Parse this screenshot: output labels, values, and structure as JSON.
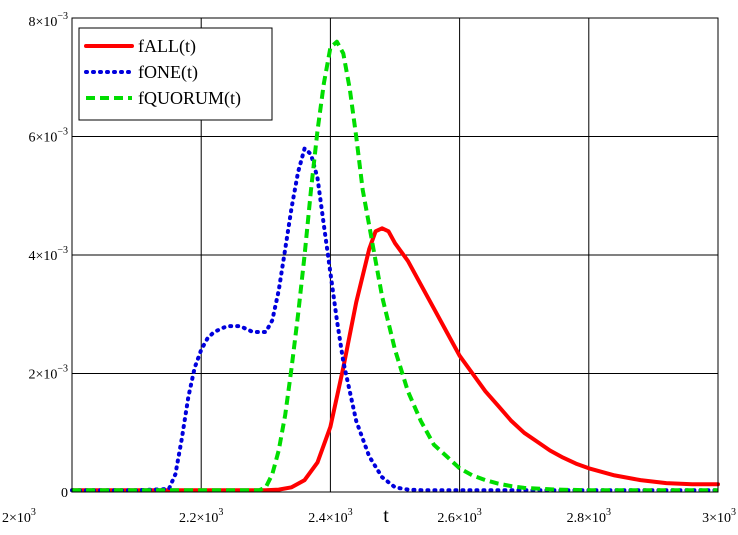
{
  "chart_data": {
    "type": "line",
    "title": "",
    "xlabel": "t",
    "ylabel": "",
    "xlim": [
      2000,
      3000
    ],
    "ylim": [
      0,
      0.008
    ],
    "grid": true,
    "legend_position": "top-left",
    "x_ticks": [
      {
        "value": 2000,
        "mantissa": "2",
        "exponent": "3"
      },
      {
        "value": 2200,
        "mantissa": "2.2",
        "exponent": "3"
      },
      {
        "value": 2400,
        "mantissa": "2.4",
        "exponent": "3"
      },
      {
        "value": 2600,
        "mantissa": "2.6",
        "exponent": "3"
      },
      {
        "value": 2800,
        "mantissa": "2.8",
        "exponent": "3"
      },
      {
        "value": 3000,
        "mantissa": "3",
        "exponent": "3"
      }
    ],
    "y_ticks": [
      {
        "value": 0,
        "mantissa": "0",
        "exponent": ""
      },
      {
        "value": 0.002,
        "mantissa": "2",
        "exponent": "−3"
      },
      {
        "value": 0.004,
        "mantissa": "4",
        "exponent": "−3"
      },
      {
        "value": 0.006,
        "mantissa": "6",
        "exponent": "−3"
      },
      {
        "value": 0.008,
        "mantissa": "8",
        "exponent": "−3"
      }
    ],
    "series": [
      {
        "name": "fALL(t)",
        "color": "#ff0000",
        "style": "solid",
        "x": [
          2000,
          2100,
          2200,
          2280,
          2300,
          2320,
          2340,
          2360,
          2380,
          2400,
          2420,
          2440,
          2460,
          2470,
          2480,
          2490,
          2500,
          2520,
          2540,
          2560,
          2580,
          2600,
          2620,
          2640,
          2660,
          2680,
          2700,
          2720,
          2740,
          2760,
          2780,
          2800,
          2840,
          2880,
          2920,
          2960,
          3000
        ],
        "y": [
          3e-05,
          3e-05,
          3e-05,
          3e-05,
          3e-05,
          4e-05,
          8e-05,
          0.0002,
          0.0005,
          0.0011,
          0.0021,
          0.0032,
          0.0041,
          0.0044,
          0.00445,
          0.0044,
          0.0042,
          0.0039,
          0.0035,
          0.0031,
          0.0027,
          0.0023,
          0.002,
          0.0017,
          0.00145,
          0.0012,
          0.001,
          0.00085,
          0.0007,
          0.00058,
          0.00048,
          0.0004,
          0.00028,
          0.0002,
          0.00015,
          0.00013,
          0.00013
        ]
      },
      {
        "name": "fONE(t)",
        "color": "#0000dd",
        "style": "dotted",
        "x": [
          2000,
          2100,
          2150,
          2160,
          2170,
          2180,
          2190,
          2200,
          2210,
          2220,
          2240,
          2260,
          2280,
          2300,
          2310,
          2320,
          2330,
          2340,
          2350,
          2360,
          2370,
          2380,
          2390,
          2400,
          2410,
          2420,
          2440,
          2460,
          2480,
          2500,
          2520,
          2540,
          2600,
          2700,
          2800,
          2900,
          3000
        ],
        "y": [
          3e-05,
          3e-05,
          5e-05,
          0.0003,
          0.0009,
          0.0016,
          0.0021,
          0.0024,
          0.0026,
          0.0027,
          0.0028,
          0.0028,
          0.0027,
          0.0027,
          0.0029,
          0.0034,
          0.0041,
          0.0048,
          0.0054,
          0.0058,
          0.0057,
          0.0053,
          0.0045,
          0.0037,
          0.0029,
          0.0022,
          0.0012,
          0.0006,
          0.00025,
          8e-05,
          4e-05,
          3e-05,
          3e-05,
          3e-05,
          3e-05,
          3e-05,
          3e-05
        ]
      },
      {
        "name": "fQUORUM(t)",
        "color": "#00dd00",
        "style": "dashed",
        "x": [
          2000,
          2100,
          2200,
          2290,
          2300,
          2310,
          2320,
          2330,
          2340,
          2350,
          2360,
          2370,
          2380,
          2390,
          2400,
          2410,
          2420,
          2430,
          2440,
          2450,
          2460,
          2470,
          2480,
          2500,
          2520,
          2540,
          2560,
          2580,
          2600,
          2620,
          2640,
          2660,
          2680,
          2700,
          2750,
          2800,
          2900,
          3000
        ],
        "y": [
          3e-05,
          3e-05,
          3e-05,
          3e-05,
          8e-05,
          0.0003,
          0.0007,
          0.0013,
          0.0021,
          0.003,
          0.004,
          0.0051,
          0.0061,
          0.0069,
          0.0075,
          0.0076,
          0.0074,
          0.0068,
          0.006,
          0.0051,
          0.0045,
          0.0039,
          0.0033,
          0.0024,
          0.0017,
          0.0012,
          0.0008,
          0.0006,
          0.0004,
          0.00028,
          0.0002,
          0.00014,
          0.0001,
          7e-05,
          4e-05,
          3e-05,
          3e-05,
          3e-05
        ]
      }
    ]
  }
}
